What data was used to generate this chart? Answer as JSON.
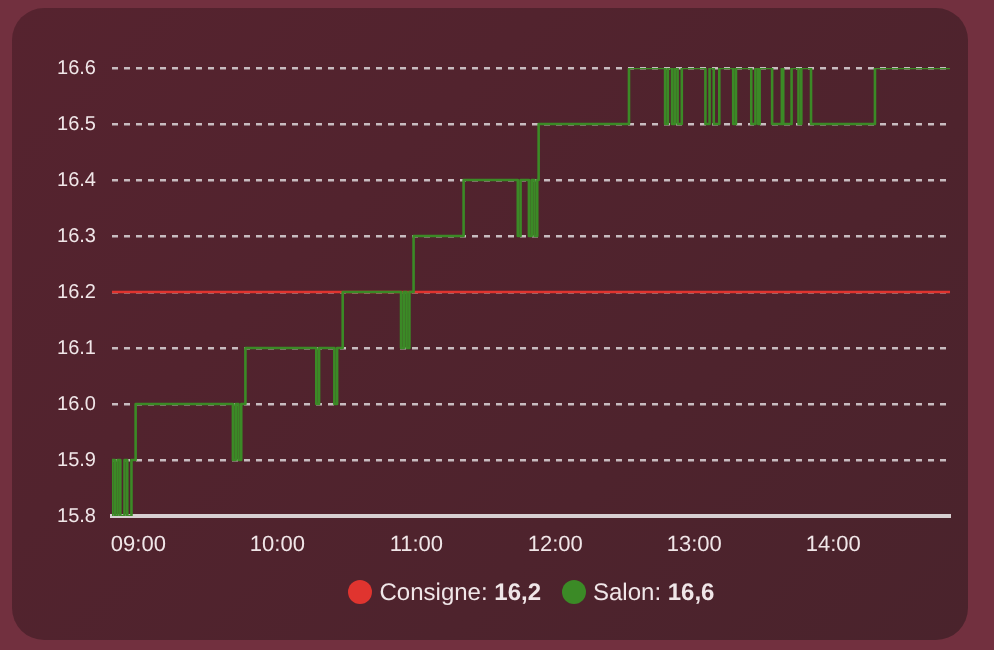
{
  "chart_data": {
    "type": "step",
    "x": [
      8.81,
      8.83,
      8.85,
      8.87,
      8.9,
      8.92,
      8.95,
      8.98,
      9.68,
      9.7,
      9.72,
      9.74,
      9.77,
      10.28,
      10.3,
      10.41,
      10.43,
      10.47,
      10.89,
      10.91,
      10.93,
      10.95,
      10.98,
      11.34,
      11.73,
      11.75,
      11.81,
      11.83,
      11.85,
      11.87,
      11.88,
      12.53,
      12.79,
      12.81,
      12.84,
      12.86,
      12.88,
      12.91,
      13.08,
      13.11,
      13.14,
      13.18,
      13.28,
      13.3,
      13.41,
      13.44,
      13.46,
      13.47,
      13.56,
      13.63,
      13.64,
      13.7,
      13.75,
      13.77,
      13.84,
      14.3,
      14.32,
      14.84
    ],
    "series": [
      {
        "name": "Consigne: 16,2",
        "color": "#e0342f",
        "type": "line",
        "x": [
          8.81,
          14.84
        ],
        "values": [
          16.2,
          16.2
        ]
      },
      {
        "name": "Salon: 16,6",
        "color": "#3b8a26",
        "values": [
          15.8,
          15.9,
          15.8,
          15.9,
          15.8,
          15.9,
          15.8,
          15.9,
          16.0,
          15.9,
          16.0,
          15.9,
          16.0,
          16.1,
          16.0,
          16.1,
          16.0,
          16.1,
          16.2,
          16.1,
          16.2,
          16.1,
          16.2,
          16.3,
          16.4,
          16.3,
          16.4,
          16.3,
          16.4,
          16.3,
          16.4,
          16.5,
          16.6,
          16.5,
          16.6,
          16.5,
          16.6,
          16.5,
          16.6,
          16.5,
          16.6,
          16.5,
          16.6,
          16.5,
          16.6,
          16.5,
          16.6,
          16.5,
          16.6,
          16.5,
          16.6,
          16.5,
          16.6,
          16.5,
          16.6,
          16.5,
          16.6,
          16.6
        ]
      }
    ],
    "xlim": [
      8.81,
      14.84
    ],
    "xticks": [
      {
        "value": 9,
        "label": "09:00"
      },
      {
        "value": 10,
        "label": "10:00"
      },
      {
        "value": 11,
        "label": "11:00"
      },
      {
        "value": 12,
        "label": "12:00"
      },
      {
        "value": 13,
        "label": "13:00"
      },
      {
        "value": 14,
        "label": "14:00"
      }
    ],
    "ylim": [
      15.8,
      16.6
    ],
    "yticks": [
      15.8,
      15.9,
      {
        "value": 16,
        "label": "16.0"
      },
      16.1,
      16.2,
      16.3,
      16.4,
      16.5,
      16.6
    ],
    "grid": "y",
    "legend": "bottom",
    "marker": "none",
    "line_style": "solid"
  }
}
